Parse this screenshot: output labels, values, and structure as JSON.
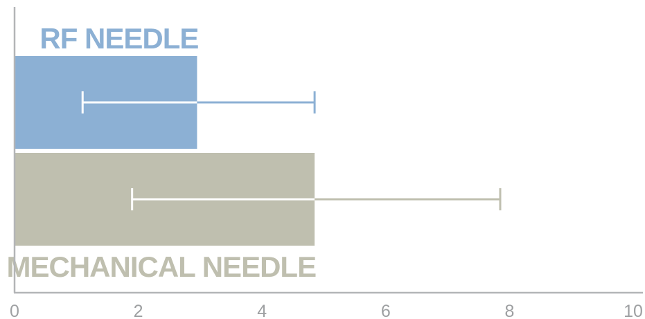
{
  "chart_data": {
    "type": "bar",
    "orientation": "horizontal",
    "title": "",
    "xlabel": "",
    "ylabel": "",
    "xlim": [
      0,
      10
    ],
    "x_ticks": [
      "0",
      "2",
      "4",
      "6",
      "8",
      "10"
    ],
    "grid": false,
    "legend": "none",
    "categories": [
      "RF NEEDLE",
      "MECHANICAL NEEDLE"
    ],
    "values": [
      2.95,
      4.85
    ],
    "error_bars": [
      {
        "low": 1.1,
        "high": 4.85
      },
      {
        "low": 1.9,
        "high": 7.85
      }
    ],
    "colors": [
      "#8cb0d4",
      "#bfbfaf"
    ]
  }
}
